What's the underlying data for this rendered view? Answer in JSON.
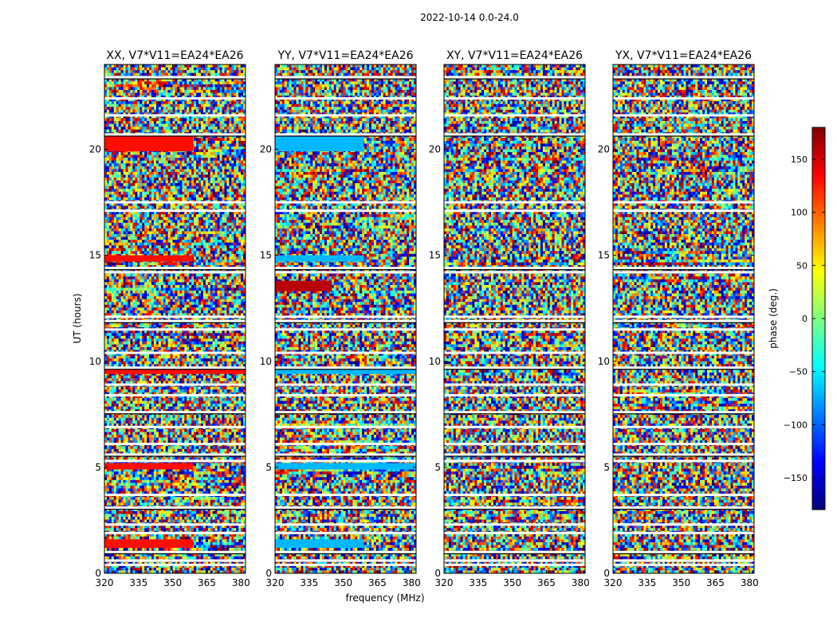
{
  "chart_data": {
    "type": "heatmap",
    "title": "2022-10-14 0.0-24.0",
    "xlabel": "frequency (MHz)",
    "ylabel": "UT (hours)",
    "xlim": [
      320,
      382
    ],
    "ylim": [
      0,
      24
    ],
    "x_ticks": [
      320,
      335,
      350,
      365,
      380
    ],
    "y_ticks": [
      0,
      5,
      10,
      15,
      20
    ],
    "panels": [
      {
        "title": "XX, V7*V11=EA24*EA26",
        "polarization": "XX",
        "coherent_bands": [
          [
            0.0,
            24.0
          ]
        ],
        "solid_blocks": [
          {
            "t": [
              19.9,
              20.6
            ],
            "f": [
              320,
              359
            ],
            "phase": 130
          },
          {
            "t": [
              14.7,
              15.0
            ],
            "f": [
              320,
              359
            ],
            "phase": 130
          },
          {
            "t": [
              9.4,
              9.6
            ],
            "f": [
              320,
              382
            ],
            "phase": 130
          },
          {
            "t": [
              4.9,
              5.2
            ],
            "f": [
              320,
              359
            ],
            "phase": 130
          },
          {
            "t": [
              1.2,
              1.6
            ],
            "f": [
              320,
              359
            ],
            "phase": 130
          }
        ]
      },
      {
        "title": "YY, V7*V11=EA24*EA26",
        "polarization": "YY",
        "solid_blocks": [
          {
            "t": [
              19.9,
              20.6
            ],
            "f": [
              320,
              359
            ],
            "phase": -70
          },
          {
            "t": [
              14.7,
              15.0
            ],
            "f": [
              320,
              359
            ],
            "phase": -70
          },
          {
            "t": [
              13.3,
              13.8
            ],
            "f": [
              320,
              345
            ],
            "phase": 160
          },
          {
            "t": [
              9.4,
              9.6
            ],
            "f": [
              320,
              382
            ],
            "phase": -70
          },
          {
            "t": [
              4.9,
              5.2
            ],
            "f": [
              320,
              382
            ],
            "phase": -70
          },
          {
            "t": [
              1.2,
              1.6
            ],
            "f": [
              320,
              359
            ],
            "phase": -70
          }
        ]
      },
      {
        "title": "XY, V7*V11=EA24*EA26",
        "polarization": "XY",
        "solid_blocks": []
      },
      {
        "title": "YX, V7*V11=EA24*EA26",
        "polarization": "YX",
        "solid_blocks": []
      }
    ],
    "flagged_time_rows": [
      23.4,
      22.4,
      21.6,
      20.7,
      17.5,
      17.1,
      14.4,
      14.2,
      12.1,
      11.9,
      11.5,
      10.4,
      9.7,
      8.9,
      8.4,
      7.6,
      6.9,
      6.1,
      5.6,
      5.3,
      3.7,
      3.1,
      2.3,
      1.9,
      1.0,
      0.6,
      0.4
    ],
    "colorbar": {
      "label": "phase (deg.)",
      "range": [
        -180,
        180
      ],
      "ticks": [
        150,
        100,
        50,
        0,
        -50,
        -100,
        -150
      ],
      "tick_labels": [
        "150",
        "100",
        "50",
        "0",
        "−50",
        "−100",
        "−150"
      ],
      "colormap": "jet",
      "stops": [
        "#00007f",
        "#0000ff",
        "#007fff",
        "#00ffff",
        "#7fff7f",
        "#ffff00",
        "#ff7f00",
        "#ff0000",
        "#7f0000"
      ]
    }
  }
}
